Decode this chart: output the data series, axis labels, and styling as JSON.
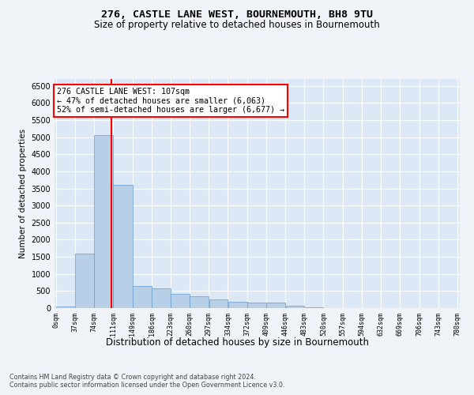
{
  "title": "276, CASTLE LANE WEST, BOURNEMOUTH, BH8 9TU",
  "subtitle": "Size of property relative to detached houses in Bournemouth",
  "xlabel": "Distribution of detached houses by size in Bournemouth",
  "ylabel": "Number of detached properties",
  "bar_color": "#b8cfe8",
  "bar_edge_color": "#6699cc",
  "bg_color": "#dce8f5",
  "fig_color": "#f0f4f8",
  "grid_color": "#ffffff",
  "red_line_x": 107,
  "annotation_title": "276 CASTLE LANE WEST: 107sqm",
  "annotation_line1": "← 47% of detached houses are smaller (6,063)",
  "annotation_line2": "52% of semi-detached houses are larger (6,677) →",
  "footnote1": "Contains HM Land Registry data © Crown copyright and database right 2024.",
  "footnote2": "Contains public sector information licensed under the Open Government Licence v3.0.",
  "bin_edges": [
    0,
    37,
    74,
    111,
    149,
    186,
    223,
    260,
    297,
    334,
    372,
    409,
    446,
    483,
    520,
    557,
    594,
    632,
    669,
    706,
    743,
    780
  ],
  "bar_heights": [
    50,
    1600,
    5050,
    3600,
    650,
    570,
    420,
    350,
    260,
    190,
    170,
    155,
    80,
    30,
    0,
    0,
    0,
    0,
    0,
    0,
    0
  ],
  "ylim_max": 6700,
  "yticks": [
    0,
    500,
    1000,
    1500,
    2000,
    2500,
    3000,
    3500,
    4000,
    4500,
    5000,
    5500,
    6000,
    6500
  ]
}
